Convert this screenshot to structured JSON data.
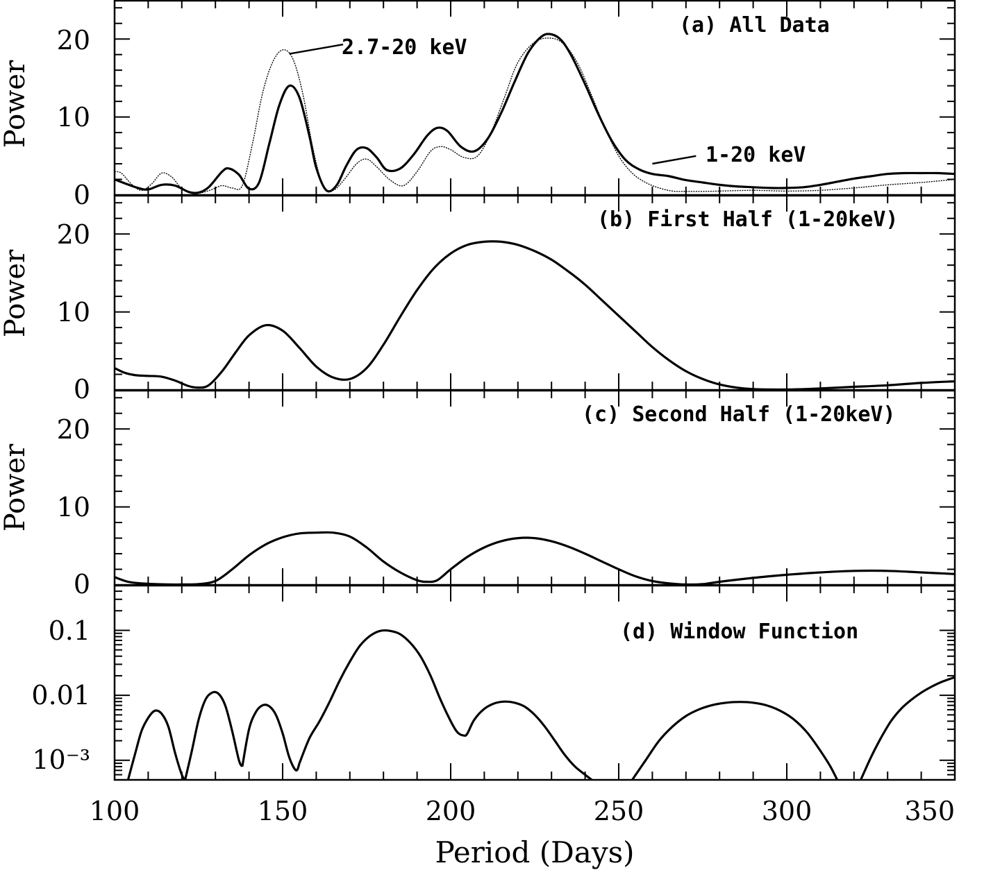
{
  "chart_data": [
    {
      "type": "line",
      "panel_label": "(a) All Data",
      "ylabel": "Power",
      "xlim": [
        100,
        350
      ],
      "ylim": [
        0,
        25
      ],
      "y_ticks": [
        0,
        10,
        20
      ],
      "series": [
        {
          "name": "1-20 keV",
          "style": "thick",
          "x": [
            100,
            103,
            107,
            110,
            114,
            118,
            122,
            125,
            128,
            132,
            134,
            137,
            140,
            143,
            146,
            149,
            152,
            155,
            158,
            160,
            163,
            166,
            169,
            172,
            175,
            178,
            181,
            185,
            189,
            193,
            196,
            199,
            203,
            207,
            211,
            215,
            219,
            223,
            227,
            230,
            233,
            236,
            240,
            244,
            248,
            252,
            256,
            260,
            265,
            270,
            275,
            280,
            285,
            290,
            295,
            300,
            305,
            310,
            315,
            320,
            325,
            330,
            335,
            340,
            345,
            350
          ],
          "y": [
            2.0,
            1.5,
            0.9,
            0.7,
            1.3,
            1.2,
            0.4,
            0.3,
            1.0,
            3.0,
            3.4,
            2.6,
            0.8,
            1.6,
            6.5,
            11.5,
            14.0,
            12.5,
            7.5,
            3.5,
            0.6,
            1.2,
            3.8,
            5.8,
            6.0,
            4.8,
            3.2,
            3.4,
            5.2,
            7.6,
            8.6,
            8.2,
            6.2,
            5.6,
            7.2,
            10.5,
            14.5,
            18.2,
            20.3,
            20.6,
            19.8,
            17.8,
            14.2,
            10.3,
            6.9,
            4.5,
            3.3,
            2.7,
            2.4,
            1.9,
            1.6,
            1.3,
            1.1,
            1.0,
            0.9,
            0.9,
            1.0,
            1.3,
            1.7,
            2.1,
            2.4,
            2.7,
            2.8,
            2.8,
            2.8,
            2.7
          ]
        },
        {
          "name": "2.7-20 keV",
          "style": "thin",
          "x": [
            100,
            102,
            105,
            108,
            111,
            114,
            117,
            120,
            123,
            126,
            129,
            132,
            135,
            138,
            141,
            144,
            147,
            150,
            153,
            156,
            159,
            162,
            165,
            168,
            172,
            175,
            178,
            182,
            186,
            190,
            194,
            197,
            200,
            204,
            208,
            212,
            216,
            220,
            225,
            230,
            234,
            238,
            242,
            246,
            250,
            254,
            258,
            262,
            266,
            270,
            275,
            280,
            290,
            300,
            310,
            320,
            330,
            340,
            350
          ],
          "y": [
            3.0,
            2.8,
            1.4,
            0.6,
            1.4,
            2.8,
            2.3,
            0.8,
            0.2,
            0.3,
            0.7,
            1.2,
            0.9,
            1.2,
            6.5,
            13.0,
            17.0,
            18.6,
            17.5,
            13.0,
            6.0,
            1.2,
            0.6,
            1.8,
            4.0,
            4.6,
            3.6,
            1.9,
            1.2,
            3.0,
            5.6,
            6.2,
            5.8,
            4.8,
            5.0,
            8.0,
            12.5,
            17.0,
            19.6,
            20.1,
            19.2,
            16.7,
            12.7,
            8.5,
            5.0,
            2.8,
            1.6,
            0.9,
            0.5,
            0.45,
            0.45,
            0.5,
            0.6,
            0.5,
            0.6,
            0.9,
            1.3,
            1.6,
            2.0
          ]
        }
      ],
      "annotations": [
        {
          "text": "2.7-20 keV",
          "x": 168,
          "y": 19.3,
          "arrow_to": [
            152,
            18.1
          ]
        },
        {
          "text": "1-20 keV",
          "x": 273,
          "y": 5.0,
          "arrow_to": [
            260,
            4.0
          ]
        }
      ]
    },
    {
      "type": "line",
      "panel_label": "(b) First Half (1-20keV)",
      "ylabel": "Power",
      "xlim": [
        100,
        350
      ],
      "ylim": [
        0,
        25
      ],
      "y_ticks": [
        0,
        10,
        20
      ],
      "series": [
        {
          "style": "thick",
          "x": [
            100,
            103,
            106,
            110,
            114,
            118,
            122,
            125,
            128,
            132,
            136,
            140,
            145,
            150,
            155,
            160,
            165,
            170,
            175,
            180,
            185,
            190,
            195,
            200,
            205,
            210,
            215,
            220,
            225,
            230,
            235,
            240,
            245,
            250,
            255,
            260,
            265,
            270,
            275,
            280,
            285,
            290,
            295,
            300,
            305,
            310,
            320,
            330,
            340,
            350
          ],
          "y": [
            2.8,
            2.2,
            1.9,
            1.8,
            1.7,
            1.2,
            0.5,
            0.3,
            0.6,
            2.4,
            4.8,
            7.0,
            8.3,
            7.6,
            5.4,
            3.0,
            1.6,
            1.4,
            2.8,
            5.8,
            9.4,
            12.8,
            15.6,
            17.5,
            18.6,
            19.0,
            19.0,
            18.6,
            17.8,
            16.7,
            15.2,
            13.5,
            11.5,
            9.5,
            7.5,
            5.5,
            3.8,
            2.4,
            1.4,
            0.7,
            0.3,
            0.1,
            0.05,
            0.05,
            0.1,
            0.2,
            0.4,
            0.6,
            0.9,
            1.1
          ]
        }
      ]
    },
    {
      "type": "line",
      "panel_label": "(c) Second Half (1-20keV)",
      "ylabel": "Power",
      "xlim": [
        100,
        350
      ],
      "ylim": [
        0,
        25
      ],
      "y_ticks": [
        0,
        10,
        20
      ],
      "series": [
        {
          "style": "thick",
          "x": [
            100,
            104,
            108,
            112,
            116,
            120,
            125,
            130,
            135,
            140,
            145,
            150,
            155,
            160,
            165,
            170,
            175,
            180,
            185,
            190,
            193,
            196,
            200,
            205,
            210,
            215,
            220,
            225,
            230,
            235,
            240,
            245,
            250,
            255,
            260,
            265,
            270,
            275,
            280,
            290,
            300,
            310,
            320,
            330,
            340,
            350
          ],
          "y": [
            1.0,
            0.4,
            0.2,
            0.1,
            0.05,
            0.05,
            0.1,
            0.5,
            2.0,
            3.8,
            5.2,
            6.1,
            6.6,
            6.7,
            6.7,
            6.2,
            4.8,
            3.0,
            1.6,
            0.6,
            0.4,
            0.6,
            2.0,
            3.6,
            4.8,
            5.6,
            6.0,
            6.0,
            5.6,
            4.9,
            4.0,
            3.0,
            2.0,
            1.1,
            0.5,
            0.2,
            0.05,
            0.1,
            0.4,
            0.9,
            1.3,
            1.6,
            1.8,
            1.8,
            1.6,
            1.4
          ]
        }
      ]
    },
    {
      "type": "line",
      "panel_label": "(d) Window Function",
      "scale": "log",
      "ylim": [
        0.0005,
        0.5
      ],
      "y_tick_labels": [
        "0.1",
        "0.01",
        "10⁻³"
      ],
      "y_ticks": [
        0.1,
        0.01,
        0.001
      ],
      "series": [
        {
          "style": "thick",
          "segments": [
            {
              "x": [
                104,
                106,
                108,
                110,
                112,
                114,
                116,
                118,
                120,
                121
              ],
              "y": [
                0.0005,
                0.0012,
                0.0028,
                0.0045,
                0.0058,
                0.0052,
                0.0033,
                0.0013,
                0.0006,
                0.0005
              ]
            },
            {
              "x": [
                121,
                123,
                125,
                127,
                129,
                131,
                133,
                135,
                137,
                138
              ],
              "y": [
                0.0005,
                0.0014,
                0.0042,
                0.0085,
                0.011,
                0.0105,
                0.0068,
                0.0028,
                0.001,
                0.0008
              ]
            },
            {
              "x": [
                138,
                140,
                142,
                144,
                146,
                148,
                150,
                152,
                154,
                155
              ],
              "y": [
                0.0008,
                0.003,
                0.0055,
                0.007,
                0.0068,
                0.005,
                0.0026,
                0.0011,
                0.0007,
                0.0009
              ]
            },
            {
              "x": [
                155,
                158,
                161,
                164,
                167,
                170,
                173,
                176,
                179,
                182,
                185,
                188,
                191,
                194,
                197,
                200,
                202,
                204,
                205,
                207,
                210,
                213,
                216,
                219,
                222,
                225,
                228,
                231,
                234,
                237,
                240,
                242
              ],
              "y": [
                0.0009,
                0.0022,
                0.004,
                0.008,
                0.017,
                0.033,
                0.058,
                0.082,
                0.098,
                0.098,
                0.087,
                0.064,
                0.04,
                0.02,
                0.0085,
                0.004,
                0.0027,
                0.0024,
                0.0026,
                0.0042,
                0.0062,
                0.0075,
                0.008,
                0.0077,
                0.0067,
                0.005,
                0.0033,
                0.002,
                0.0012,
                0.0008,
                0.0006,
                0.0005
              ]
            },
            {
              "x": [
                254,
                258,
                262,
                266,
                270,
                274,
                278,
                282,
                286,
                290,
                294,
                298,
                302,
                306,
                310,
                313,
                315
              ],
              "y": [
                0.0005,
                0.001,
                0.002,
                0.0033,
                0.0048,
                0.0061,
                0.0071,
                0.0077,
                0.0079,
                0.0077,
                0.007,
                0.0058,
                0.0043,
                0.0027,
                0.0014,
                0.0008,
                0.0005
              ]
            },
            {
              "x": [
                322,
                325,
                328,
                331,
                334,
                337,
                340,
                343,
                346,
                350
              ],
              "y": [
                0.0005,
                0.0011,
                0.0022,
                0.004,
                0.0062,
                0.0085,
                0.011,
                0.0135,
                0.016,
                0.019
              ]
            }
          ]
        }
      ]
    }
  ],
  "x_axis": {
    "ticks": [
      100,
      150,
      200,
      250,
      300,
      350
    ],
    "tick_labels": [
      "100",
      "150",
      "200",
      "250",
      "300",
      "350"
    ],
    "label": "Period (Days)"
  },
  "y_tick_labels_linear": [
    "0",
    "10",
    "20"
  ]
}
